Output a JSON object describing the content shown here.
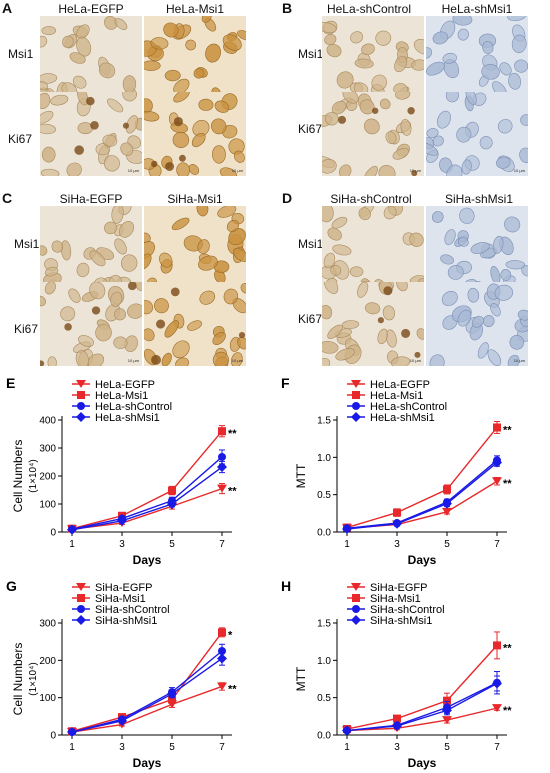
{
  "panels": {
    "A": {
      "letter": "A",
      "col1": "HeLa-EGFP",
      "col2": "HeLa-Msi1",
      "row1": "Msi1",
      "row2": "Ki67",
      "tiles": [
        [
          "brown-light",
          "brown-strong"
        ],
        [
          "brown-light",
          "brown-strong"
        ]
      ]
    },
    "B": {
      "letter": "B",
      "col1": "HeLa-shControl",
      "col2": "HeLa-shMsi1",
      "row1": "Msi1",
      "row2": "Ki67",
      "tiles": [
        [
          "brown-light",
          "blue"
        ],
        [
          "brown-light",
          "blue"
        ]
      ]
    },
    "C": {
      "letter": "C",
      "col1": "SiHa-EGFP",
      "col2": "SiHa-Msi1",
      "row1": "Msi1",
      "row2": "Ki67",
      "tiles": [
        [
          "brown-light",
          "brown-strong"
        ],
        [
          "brown-light",
          "brown-strong"
        ]
      ]
    },
    "D": {
      "letter": "D",
      "col1": "SiHa-shControl",
      "col2": "SiHa-shMsi1",
      "row1": "Msi1",
      "row2": "Ki67",
      "tiles": [
        [
          "brown-light",
          "blue"
        ],
        [
          "brown-light",
          "blue"
        ]
      ]
    }
  },
  "scale_bar": "10 μm",
  "colors": {
    "red": "#e8282a",
    "blue": "#1a1ae6",
    "brown": "#b8813a",
    "hematoxylin": "#8fa6c6"
  },
  "chart_data": [
    {
      "panel": "E",
      "type": "line",
      "xlabel": "Days",
      "ylabel": "Cell Numbers",
      "yunit": "(1×10⁴)",
      "x": [
        1,
        3,
        5,
        7
      ],
      "xticks": [
        "1",
        "3",
        "5",
        "7"
      ],
      "ylim": [
        0,
        400
      ],
      "yticks": [
        "0",
        "100",
        "200",
        "300",
        "400"
      ],
      "ytick_values": [
        0,
        100,
        200,
        300,
        400
      ],
      "series": [
        {
          "name": "HeLa-EGFP",
          "marker": "tri-down",
          "color": "#e8282a",
          "values": [
            10,
            32,
            92,
            155
          ],
          "err": [
            3,
            5,
            10,
            18
          ]
        },
        {
          "name": "HeLa-Msi1",
          "marker": "square",
          "color": "#e8282a",
          "values": [
            12,
            58,
            148,
            360
          ],
          "err": [
            3,
            8,
            15,
            20
          ]
        },
        {
          "name": "HeLa-shControl",
          "marker": "circle",
          "color": "#1a1ae6",
          "values": [
            10,
            48,
            112,
            268
          ],
          "err": [
            3,
            6,
            12,
            25
          ]
        },
        {
          "name": "HeLa-shMsi1",
          "marker": "diamond",
          "color": "#1a1ae6",
          "values": [
            8,
            40,
            100,
            232
          ],
          "err": [
            3,
            5,
            10,
            20
          ]
        }
      ],
      "annotations": [
        {
          "text": "**",
          "y": 360
        },
        {
          "text": "**",
          "y": 155
        }
      ]
    },
    {
      "panel": "F",
      "type": "line",
      "xlabel": "Days",
      "ylabel": "MTT",
      "yunit": "",
      "x": [
        1,
        3,
        5,
        7
      ],
      "xticks": [
        "1",
        "3",
        "5",
        "7"
      ],
      "ylim": [
        0,
        1.5
      ],
      "yticks": [
        "0.0",
        "0.5",
        "1.0",
        "1.5"
      ],
      "ytick_values": [
        0,
        0.5,
        1.0,
        1.5
      ],
      "series": [
        {
          "name": "HeLa-EGFP",
          "marker": "tri-down",
          "color": "#e8282a",
          "values": [
            0.05,
            0.1,
            0.27,
            0.68
          ],
          "err": [
            0.02,
            0.02,
            0.03,
            0.05
          ]
        },
        {
          "name": "HeLa-Msi1",
          "marker": "square",
          "color": "#e8282a",
          "values": [
            0.06,
            0.26,
            0.57,
            1.4
          ],
          "err": [
            0.02,
            0.05,
            0.06,
            0.08
          ]
        },
        {
          "name": "HeLa-shControl",
          "marker": "circle",
          "color": "#1a1ae6",
          "values": [
            0.05,
            0.12,
            0.4,
            0.96
          ],
          "err": [
            0.02,
            0.03,
            0.04,
            0.06
          ]
        },
        {
          "name": "HeLa-shMsi1",
          "marker": "diamond",
          "color": "#1a1ae6",
          "values": [
            0.04,
            0.11,
            0.38,
            0.93
          ],
          "err": [
            0.02,
            0.03,
            0.04,
            0.05
          ]
        }
      ],
      "annotations": [
        {
          "text": "**",
          "y": 1.4
        },
        {
          "text": "**",
          "y": 0.68
        }
      ]
    },
    {
      "panel": "G",
      "type": "line",
      "xlabel": "Days",
      "ylabel": "Cell Numbers",
      "yunit": "(1×10⁴)",
      "x": [
        1,
        3,
        5,
        7
      ],
      "xticks": [
        "1",
        "3",
        "5",
        "7"
      ],
      "ylim": [
        0,
        300
      ],
      "yticks": [
        "0",
        "100",
        "200",
        "300"
      ],
      "ytick_values": [
        0,
        100,
        200,
        300
      ],
      "series": [
        {
          "name": "SiHa-EGFP",
          "marker": "tri-down",
          "color": "#e8282a",
          "values": [
            8,
            28,
            82,
            130
          ],
          "err": [
            2,
            4,
            8,
            10
          ]
        },
        {
          "name": "SiHa-Msi1",
          "marker": "square",
          "color": "#e8282a",
          "values": [
            10,
            48,
            95,
            275
          ],
          "err": [
            2,
            6,
            10,
            12
          ]
        },
        {
          "name": "SiHa-shControl",
          "marker": "circle",
          "color": "#1a1ae6",
          "values": [
            8,
            42,
            115,
            225
          ],
          "err": [
            2,
            5,
            12,
            18
          ]
        },
        {
          "name": "SiHa-shMsi1",
          "marker": "diamond",
          "color": "#1a1ae6",
          "values": [
            8,
            38,
            110,
            205
          ],
          "err": [
            2,
            5,
            10,
            18
          ]
        }
      ],
      "annotations": [
        {
          "text": "*",
          "y": 275
        },
        {
          "text": "**",
          "y": 130
        }
      ]
    },
    {
      "panel": "H",
      "type": "line",
      "xlabel": "Days",
      "ylabel": "MTT",
      "yunit": "",
      "x": [
        1,
        3,
        5,
        7
      ],
      "xticks": [
        "1",
        "3",
        "5",
        "7"
      ],
      "ylim": [
        0,
        1.5
      ],
      "yticks": [
        "0.0",
        "0.5",
        "1.0",
        "1.5"
      ],
      "ytick_values": [
        0,
        0.5,
        1.0,
        1.5
      ],
      "series": [
        {
          "name": "SiHa-EGFP",
          "marker": "tri-down",
          "color": "#e8282a",
          "values": [
            0.06,
            0.09,
            0.2,
            0.36
          ],
          "err": [
            0.02,
            0.02,
            0.04,
            0.03
          ]
        },
        {
          "name": "SiHa-Msi1",
          "marker": "square",
          "color": "#e8282a",
          "values": [
            0.08,
            0.22,
            0.46,
            1.2
          ],
          "err": [
            0.02,
            0.04,
            0.1,
            0.18
          ]
        },
        {
          "name": "SiHa-shControl",
          "marker": "circle",
          "color": "#1a1ae6",
          "values": [
            0.06,
            0.13,
            0.37,
            0.7
          ],
          "err": [
            0.02,
            0.03,
            0.08,
            0.15
          ]
        },
        {
          "name": "SiHa-shMsi1",
          "marker": "diamond",
          "color": "#1a1ae6",
          "values": [
            0.06,
            0.12,
            0.33,
            0.69
          ],
          "err": [
            0.02,
            0.03,
            0.06,
            0.1
          ]
        }
      ],
      "annotations": [
        {
          "text": "**",
          "y": 1.2
        },
        {
          "text": "**",
          "y": 0.36
        }
      ]
    }
  ]
}
